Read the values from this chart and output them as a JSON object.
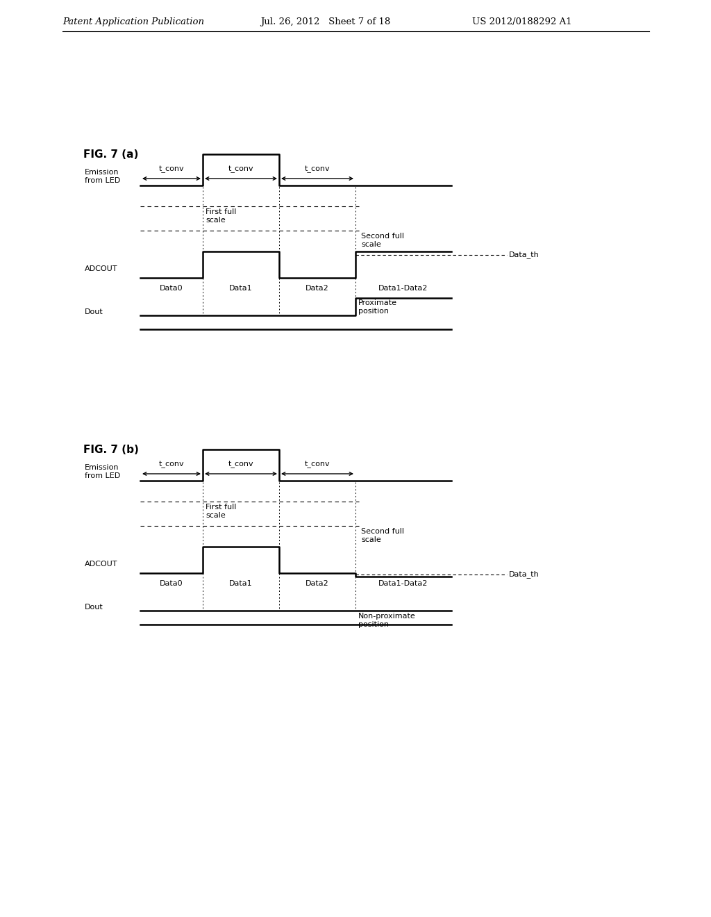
{
  "title_a": "FIG. 7 (a)",
  "title_b": "FIG. 7 (b)",
  "header_left": "Patent Application Publication",
  "header_center": "Jul. 26, 2012   Sheet 7 of 18",
  "header_right": "US 2012/0188292 A1",
  "background_color": "#ffffff",
  "line_color": "#000000"
}
